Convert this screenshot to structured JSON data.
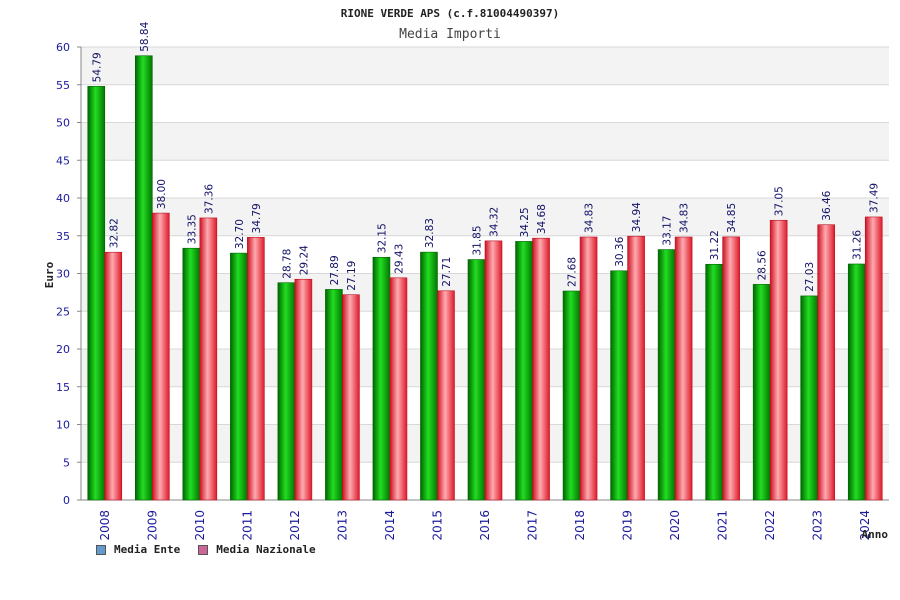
{
  "chart_data": {
    "type": "bar",
    "title": "RIONE VERDE APS (c.f.81004490397)",
    "subtitle": "Media Importi",
    "xlabel": "Anno",
    "ylabel": "Euro",
    "ylim": [
      0,
      60
    ],
    "yticks": [
      0,
      5,
      10,
      15,
      20,
      25,
      30,
      35,
      40,
      45,
      50,
      55,
      60
    ],
    "grid": true,
    "legend_position": "bottom-left",
    "categories": [
      "2008",
      "2009",
      "2010",
      "2011",
      "2012",
      "2013",
      "2014",
      "2015",
      "2016",
      "2017",
      "2018",
      "2019",
      "2020",
      "2021",
      "2022",
      "2023",
      "2024"
    ],
    "series": [
      {
        "name": "Media Ente",
        "color": "#00aa00",
        "legend_color": "#6699cc",
        "values": [
          54.79,
          58.84,
          33.35,
          32.7,
          28.78,
          27.89,
          32.15,
          32.83,
          31.85,
          34.25,
          27.68,
          30.36,
          33.17,
          31.22,
          28.56,
          27.03,
          31.26
        ],
        "labels": [
          "54.79",
          "58.84",
          "33.35",
          "32.70",
          "28.78",
          "27.89",
          "32.15",
          "32.83",
          "31.85",
          "34.25",
          "27.68",
          "30.36",
          "33.17",
          "31.22",
          "28.56",
          "27.03",
          "31.26"
        ]
      },
      {
        "name": "Media Nazionale",
        "color": "#e0303a",
        "legend_color": "#cc6699",
        "values": [
          32.82,
          38.0,
          37.36,
          34.79,
          29.24,
          27.19,
          29.43,
          27.71,
          34.32,
          34.68,
          34.83,
          34.94,
          34.83,
          34.85,
          37.05,
          36.46,
          37.49
        ],
        "labels": [
          "32.82",
          "38.00",
          "37.36",
          "34.79",
          "29.24",
          "27.19",
          "29.43",
          "27.71",
          "34.32",
          "34.68",
          "34.83",
          "34.94",
          "34.83",
          "34.85",
          "37.05",
          "36.46",
          "37.49"
        ]
      }
    ]
  }
}
